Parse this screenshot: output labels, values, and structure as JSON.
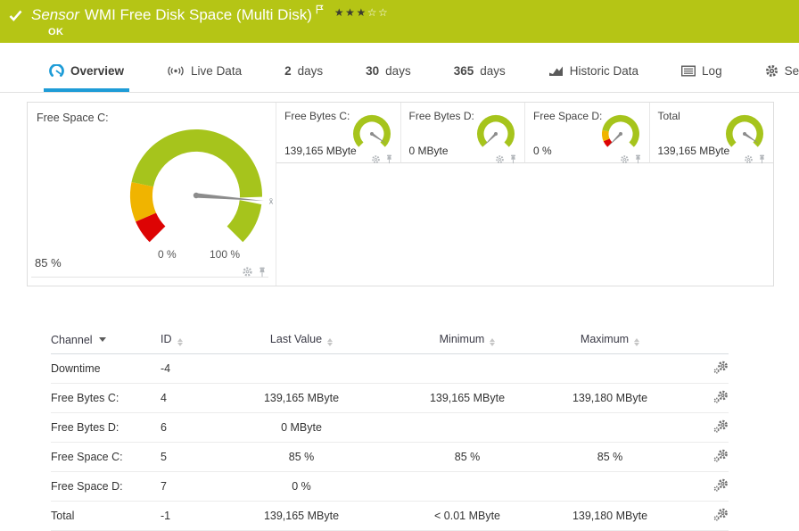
{
  "colors": {
    "brand_green": "#b5c515",
    "gauge_green": "#a6c41c",
    "gauge_yellow": "#f0b400",
    "gauge_red": "#dd0404",
    "tab_blue": "#1e9cd7",
    "tab_icon_gray": "#5a5a5a",
    "needle": "#8c8c8c",
    "footer_icon_gray": "#b3b7bb",
    "row_gear_gray": "#6f6f6f"
  },
  "header": {
    "sensor_word": "Sensor",
    "title": "WMI Free Disk Space (Multi Disk)",
    "status": "OK",
    "rating_filled": 3,
    "rating_total": 5
  },
  "tabs": [
    {
      "id": "overview",
      "label": "Overview",
      "icon": "gauge",
      "active": true
    },
    {
      "id": "live-data",
      "label": "Live Data",
      "icon": "live",
      "active": false
    },
    {
      "id": "2-days",
      "num": "2",
      "label": "days",
      "active": false
    },
    {
      "id": "30-days",
      "num": "30",
      "label": "days",
      "active": false
    },
    {
      "id": "365-days",
      "num": "365",
      "label": "days",
      "active": false
    },
    {
      "id": "historic-data",
      "label": "Historic Data",
      "icon": "chart",
      "active": false
    },
    {
      "id": "log",
      "label": "Log",
      "icon": "list",
      "active": false
    },
    {
      "id": "settings",
      "label": "Settings",
      "icon": "gear",
      "active": false
    }
  ],
  "main_gauge": {
    "id": "free-space-c",
    "title": "Free Space C:",
    "value": "85 %",
    "percent": 85,
    "min_label": "0 %",
    "max_label": "100 %",
    "marker": "x̄",
    "segments": [
      {
        "to": 8,
        "color": "gauge_red"
      },
      {
        "to": 21,
        "color": "gauge_yellow"
      },
      {
        "to": 100,
        "color": "gauge_green"
      }
    ]
  },
  "mini_gauges": [
    {
      "id": "free-bytes-c",
      "title": "Free Bytes C:",
      "value": "139,165 MByte",
      "percent": 96,
      "segments": [
        {
          "to": 100,
          "color": "gauge_green"
        }
      ]
    },
    {
      "id": "free-bytes-d",
      "title": "Free Bytes D:",
      "value": "0 MByte",
      "percent": 0,
      "segments": [
        {
          "to": 100,
          "color": "gauge_green"
        }
      ]
    },
    {
      "id": "free-space-d",
      "title": "Free Space D:",
      "value": "0 %",
      "percent": 0,
      "segments": [
        {
          "to": 8,
          "color": "gauge_red"
        },
        {
          "to": 21,
          "color": "gauge_yellow"
        },
        {
          "to": 100,
          "color": "gauge_green"
        }
      ]
    },
    {
      "id": "total",
      "title": "Total",
      "value": "139,165 MByte",
      "percent": 96,
      "segments": [
        {
          "to": 100,
          "color": "gauge_green"
        }
      ]
    }
  ],
  "channel_table": {
    "columns": [
      {
        "id": "channel",
        "label": "Channel",
        "sort": "desc",
        "align": "left"
      },
      {
        "id": "id",
        "label": "ID",
        "sort": "both",
        "align": "left"
      },
      {
        "id": "last-value",
        "label": "Last Value",
        "sort": "both",
        "align": "center"
      },
      {
        "id": "minimum",
        "label": "Minimum",
        "sort": "both",
        "align": "center"
      },
      {
        "id": "maximum",
        "label": "Maximum",
        "sort": "both",
        "align": "center"
      }
    ],
    "rows": [
      {
        "channel": "Downtime",
        "id": "-4",
        "last": "",
        "min": "",
        "max": ""
      },
      {
        "channel": "Free Bytes C:",
        "id": "4",
        "last": "139,165 MByte",
        "min": "139,165 MByte",
        "max": "139,180 MByte"
      },
      {
        "channel": "Free Bytes D:",
        "id": "6",
        "last": "0 MByte",
        "min": "",
        "max": ""
      },
      {
        "channel": "Free Space C:",
        "id": "5",
        "last": "85 %",
        "min": "85 %",
        "max": "85 %"
      },
      {
        "channel": "Free Space D:",
        "id": "7",
        "last": "0 %",
        "min": "",
        "max": ""
      },
      {
        "channel": "Total",
        "id": "-1",
        "last": "139,165 MByte",
        "min": "< 0.01 MByte",
        "max": "139,180 MByte"
      }
    ]
  }
}
